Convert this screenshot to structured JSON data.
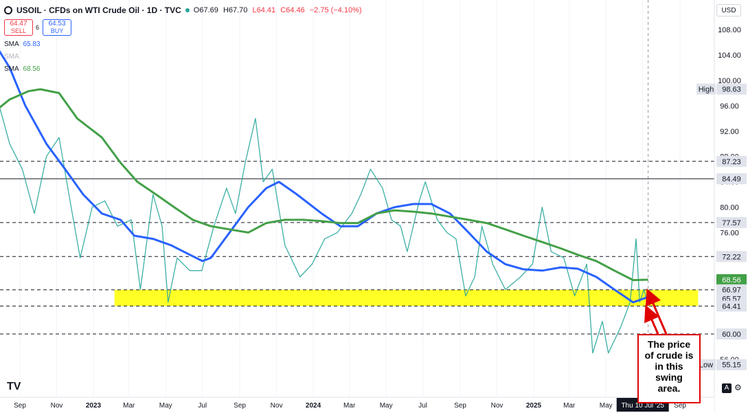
{
  "header": {
    "symbol": "USOIL · CFDs on WTI Crude Oil · 1D · TVC",
    "open": "O67.69",
    "high": "H67.70",
    "low": "L64.41",
    "close": "C64.46",
    "change": "−2.75 (−4.10%)"
  },
  "trade": {
    "sell_price": "64.47",
    "sell_label": "SELL",
    "spread": "6",
    "buy_price": "64.53",
    "buy_label": "BUY"
  },
  "indicators": [
    {
      "name": "SMA",
      "value": "65.83",
      "color": "#2962ff"
    },
    {
      "name": "SMA",
      "value": "",
      "color": "#b2b5be"
    },
    {
      "name": "SMA",
      "value": "68.56",
      "color": "#43a047"
    }
  ],
  "currency": "USD",
  "annotation": {
    "lines": [
      "The price",
      "of crude is",
      "in this",
      "swing",
      "area."
    ]
  },
  "date_label": "Thu 10 Jul '25",
  "tradingview_logo": "TV",
  "auto_button": "A",
  "chart_data": {
    "type": "line",
    "title": "USOIL · CFDs on WTI Crude Oil · 1D · TVC",
    "ylim": [
      54,
      112
    ],
    "y_ticks": [
      56,
      60,
      64,
      68,
      72,
      76,
      80,
      84,
      88,
      92,
      96,
      100,
      104,
      108
    ],
    "x_ticks": [
      "Sep",
      "Nov",
      "2023",
      "Mar",
      "May",
      "Jul",
      "Sep",
      "Nov",
      "2024",
      "Mar",
      "May",
      "Jul",
      "Sep",
      "Nov",
      "2025",
      "Mar",
      "May",
      "Thu 10 Jul '25",
      "Sep"
    ],
    "x_tick_dates": [
      "2022-09",
      "2022-11",
      "2023-01",
      "2023-03",
      "2023-05",
      "2023-07",
      "2023-09",
      "2023-11",
      "2024-01",
      "2024-03",
      "2024-05",
      "2024-07",
      "2024-09",
      "2024-11",
      "2025-01",
      "2025-03",
      "2025-05",
      "2025-07",
      "2025-09"
    ],
    "price_labels": [
      {
        "value": 98.63,
        "label": "High",
        "text": "98.63",
        "bg": "#e0e3eb"
      },
      {
        "value": 87.23,
        "text": "87.23",
        "bg": "#e0e3eb"
      },
      {
        "value": 84.49,
        "text": "84.49",
        "bg": "#e0e3eb"
      },
      {
        "value": 77.57,
        "text": "77.57",
        "bg": "#e0e3eb"
      },
      {
        "value": 72.22,
        "text": "72.22",
        "bg": "#e0e3eb"
      },
      {
        "value": 68.56,
        "text": "68.56",
        "bg": "#43a047"
      },
      {
        "value": 66.97,
        "text": "66.97",
        "bg": "#e0e3eb"
      },
      {
        "value": 65.57,
        "text": "65.57",
        "bg": "#e0e3eb"
      },
      {
        "value": 64.41,
        "text": "64.41",
        "bg": "#e0e3eb"
      },
      {
        "value": 60.0,
        "text": "60.00",
        "bg": "#e0e3eb"
      },
      {
        "value": 55.15,
        "label": "Low",
        "text": "55.15",
        "bg": "#e0e3eb"
      }
    ],
    "horizontal_lines": [
      {
        "value": 87.23,
        "style": "dashed"
      },
      {
        "value": 84.49,
        "style": "solid"
      },
      {
        "value": 77.57,
        "style": "dashed"
      },
      {
        "value": 72.22,
        "style": "dashed"
      },
      {
        "value": 66.97,
        "style": "dashed"
      },
      {
        "value": 64.41,
        "style": "dashed"
      },
      {
        "value": 60.0,
        "style": "dashed"
      }
    ],
    "zone": {
      "from_date": "2023-02-05",
      "to_date": "2025-10-01",
      "y_low": 64.41,
      "y_high": 66.97,
      "color": "#ffff00"
    },
    "price_series": [
      [
        "2022-07-20",
        99
      ],
      [
        "2022-08-15",
        90
      ],
      [
        "2022-09-05",
        86
      ],
      [
        "2022-09-25",
        79
      ],
      [
        "2022-10-15",
        88
      ],
      [
        "2022-11-05",
        91
      ],
      [
        "2022-11-25",
        80
      ],
      [
        "2022-12-10",
        72
      ],
      [
        "2022-12-30",
        80
      ],
      [
        "2023-01-20",
        81
      ],
      [
        "2023-02-10",
        77
      ],
      [
        "2023-03-05",
        78
      ],
      [
        "2023-03-20",
        67
      ],
      [
        "2023-04-10",
        82
      ],
      [
        "2023-04-25",
        77
      ],
      [
        "2023-05-05",
        65
      ],
      [
        "2023-05-20",
        72
      ],
      [
        "2023-06-10",
        70
      ],
      [
        "2023-06-30",
        70
      ],
      [
        "2023-07-20",
        77
      ],
      [
        "2023-08-10",
        83
      ],
      [
        "2023-08-25",
        79
      ],
      [
        "2023-09-10",
        87
      ],
      [
        "2023-09-27",
        94
      ],
      [
        "2023-10-10",
        84
      ],
      [
        "2023-10-25",
        86
      ],
      [
        "2023-11-15",
        74
      ],
      [
        "2023-12-10",
        69
      ],
      [
        "2023-12-30",
        71
      ],
      [
        "2024-01-20",
        75
      ],
      [
        "2024-02-10",
        76
      ],
      [
        "2024-03-05",
        79
      ],
      [
        "2024-03-20",
        82
      ],
      [
        "2024-04-05",
        86
      ],
      [
        "2024-04-25",
        83
      ],
      [
        "2024-05-10",
        78
      ],
      [
        "2024-05-25",
        77
      ],
      [
        "2024-06-05",
        73
      ],
      [
        "2024-06-25",
        81
      ],
      [
        "2024-07-05",
        84
      ],
      [
        "2024-07-25",
        78
      ],
      [
        "2024-08-10",
        76
      ],
      [
        "2024-08-25",
        75
      ],
      [
        "2024-09-10",
        66
      ],
      [
        "2024-09-25",
        69
      ],
      [
        "2024-10-07",
        77
      ],
      [
        "2024-10-25",
        71
      ],
      [
        "2024-11-15",
        67
      ],
      [
        "2024-12-10",
        69
      ],
      [
        "2024-12-30",
        71
      ],
      [
        "2025-01-15",
        80
      ],
      [
        "2025-01-30",
        73
      ],
      [
        "2025-02-20",
        72
      ],
      [
        "2025-03-10",
        66
      ],
      [
        "2025-03-30",
        71
      ],
      [
        "2025-04-09",
        57
      ],
      [
        "2025-04-25",
        62
      ],
      [
        "2025-05-05",
        57
      ],
      [
        "2025-05-25",
        61
      ],
      [
        "2025-06-10",
        65
      ],
      [
        "2025-06-20",
        75
      ],
      [
        "2025-06-26",
        65
      ],
      [
        "2025-07-03",
        67
      ],
      [
        "2025-07-10",
        64.46
      ]
    ],
    "series": [
      {
        "name": "SMA",
        "value": "65.83",
        "color": "#2962ff",
        "points": [
          [
            "2022-07-20",
            106
          ],
          [
            "2022-08-15",
            102
          ],
          [
            "2022-09-10",
            96
          ],
          [
            "2022-10-15",
            90
          ],
          [
            "2022-11-15",
            86
          ],
          [
            "2022-12-15",
            82
          ],
          [
            "2023-01-15",
            79
          ],
          [
            "2023-02-15",
            78
          ],
          [
            "2023-03-10",
            75.5
          ],
          [
            "2023-04-10",
            75
          ],
          [
            "2023-05-10",
            74
          ],
          [
            "2023-06-10",
            72.5
          ],
          [
            "2023-07-01",
            71.5
          ],
          [
            "2023-07-15",
            72
          ],
          [
            "2023-08-15",
            76
          ],
          [
            "2023-09-15",
            80
          ],
          [
            "2023-10-15",
            83
          ],
          [
            "2023-11-05",
            84
          ],
          [
            "2023-12-05",
            82
          ],
          [
            "2024-01-15",
            79
          ],
          [
            "2024-02-15",
            77
          ],
          [
            "2024-03-15",
            77
          ],
          [
            "2024-04-15",
            79
          ],
          [
            "2024-05-15",
            80
          ],
          [
            "2024-06-15",
            80.5
          ],
          [
            "2024-07-15",
            80.5
          ],
          [
            "2024-08-15",
            79
          ],
          [
            "2024-09-15",
            76
          ],
          [
            "2024-10-15",
            73
          ],
          [
            "2024-11-15",
            71
          ],
          [
            "2024-12-15",
            70.2
          ],
          [
            "2025-01-15",
            70
          ],
          [
            "2025-02-15",
            70.5
          ],
          [
            "2025-03-15",
            70.3
          ],
          [
            "2025-04-15",
            69
          ],
          [
            "2025-05-15",
            67
          ],
          [
            "2025-06-15",
            65
          ],
          [
            "2025-07-10",
            65.83
          ]
        ]
      },
      {
        "name": "SMA",
        "value": "68.56",
        "color": "#43a047",
        "points": [
          [
            "2022-07-20",
            95
          ],
          [
            "2022-08-15",
            97
          ],
          [
            "2022-09-15",
            98.3
          ],
          [
            "2022-10-05",
            98.6
          ],
          [
            "2022-11-05",
            98
          ],
          [
            "2022-12-05",
            94
          ],
          [
            "2023-01-15",
            91
          ],
          [
            "2023-02-15",
            87
          ],
          [
            "2023-03-15",
            84
          ],
          [
            "2023-04-15",
            82
          ],
          [
            "2023-05-15",
            80
          ],
          [
            "2023-06-15",
            78
          ],
          [
            "2023-07-15",
            77
          ],
          [
            "2023-08-15",
            76.5
          ],
          [
            "2023-09-15",
            76
          ],
          [
            "2023-10-15",
            77.5
          ],
          [
            "2023-11-15",
            78
          ],
          [
            "2023-12-15",
            78
          ],
          [
            "2024-01-15",
            77.8
          ],
          [
            "2024-02-15",
            77.5
          ],
          [
            "2024-03-15",
            77.5
          ],
          [
            "2024-04-15",
            79
          ],
          [
            "2024-05-15",
            79.5
          ],
          [
            "2024-06-15",
            79.3
          ],
          [
            "2024-07-15",
            79
          ],
          [
            "2024-08-15",
            78.5
          ],
          [
            "2024-09-15",
            78
          ],
          [
            "2024-10-15",
            77.5
          ],
          [
            "2024-11-15",
            76.5
          ],
          [
            "2024-12-15",
            75.5
          ],
          [
            "2025-01-15",
            74.5
          ],
          [
            "2025-02-15",
            73.5
          ],
          [
            "2025-03-15",
            72.5
          ],
          [
            "2025-04-15",
            71.5
          ],
          [
            "2025-05-15",
            70
          ],
          [
            "2025-06-15",
            68.5
          ],
          [
            "2025-07-10",
            68.56
          ]
        ]
      }
    ],
    "grid": "vertical",
    "legend": "top-left"
  }
}
